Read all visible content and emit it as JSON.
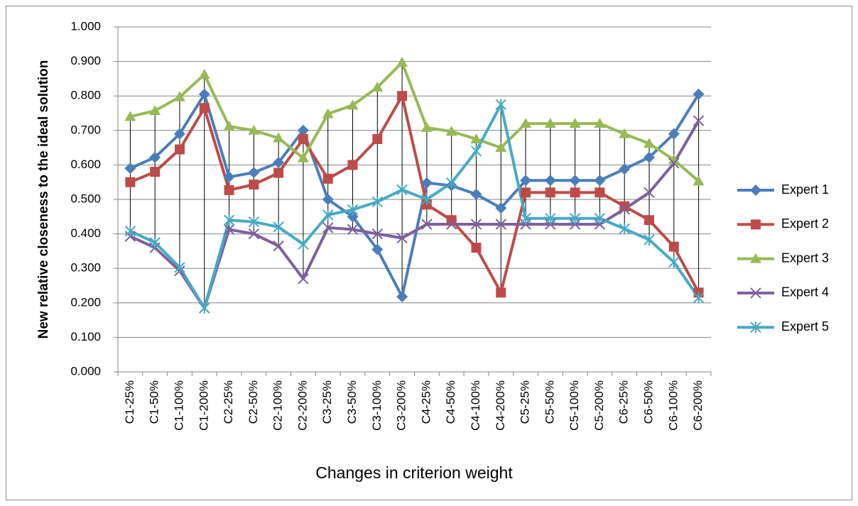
{
  "chart_data": {
    "type": "line",
    "y_label": "New relative closeness to the ideal solution",
    "x_label": "Changes in criterion weight",
    "categories": [
      "C1-25%",
      "C1-50%",
      "C1-100%",
      "C1-200%",
      "C2-25%",
      "C2-50%",
      "C2-100%",
      "C2-200%",
      "C3-25%",
      "C3-50%",
      "C3-100%",
      "C3-200%",
      "C4-25%",
      "C4-50%",
      "C4-100%",
      "C4-200%",
      "C5-25%",
      "C5-50%",
      "C5-100%",
      "C5-200%",
      "C6-25%",
      "C6-50%",
      "C6-100%",
      "C6-200%"
    ],
    "series": [
      {
        "name": "Expert 1",
        "color": "#4a7ebb",
        "marker": "diamond",
        "values": [
          0.59,
          0.622,
          0.69,
          0.805,
          0.565,
          0.578,
          0.607,
          0.7,
          0.5,
          0.45,
          0.355,
          0.218,
          0.548,
          0.54,
          0.515,
          0.475,
          0.555,
          0.555,
          0.555,
          0.555,
          0.588,
          0.622,
          0.69,
          0.805
        ]
      },
      {
        "name": "Expert 2",
        "color": "#be4b48",
        "marker": "square",
        "values": [
          0.55,
          0.58,
          0.645,
          0.765,
          0.527,
          0.543,
          0.577,
          0.675,
          0.56,
          0.6,
          0.675,
          0.8,
          0.485,
          0.44,
          0.36,
          0.23,
          0.52,
          0.52,
          0.52,
          0.52,
          0.48,
          0.44,
          0.363,
          0.23
        ]
      },
      {
        "name": "Expert 3",
        "color": "#98b954",
        "marker": "triangle",
        "values": [
          0.74,
          0.757,
          0.797,
          0.862,
          0.712,
          0.7,
          0.678,
          0.62,
          0.748,
          0.773,
          0.825,
          0.897,
          0.708,
          0.697,
          0.675,
          0.65,
          0.72,
          0.72,
          0.72,
          0.72,
          0.69,
          0.662,
          0.615,
          0.553
        ]
      },
      {
        "name": "Expert 4",
        "color": "#7d60a0",
        "marker": "x",
        "values": [
          0.393,
          0.36,
          0.293,
          0.185,
          0.413,
          0.4,
          0.365,
          0.27,
          0.418,
          0.413,
          0.4,
          0.388,
          0.428,
          0.428,
          0.428,
          0.428,
          0.428,
          0.428,
          0.428,
          0.428,
          0.472,
          0.52,
          0.605,
          0.728
        ]
      },
      {
        "name": "Expert 5",
        "color": "#46aac5",
        "marker": "star",
        "values": [
          0.408,
          0.375,
          0.303,
          0.185,
          0.44,
          0.435,
          0.42,
          0.37,
          0.455,
          0.47,
          0.493,
          0.528,
          0.5,
          0.548,
          0.64,
          0.775,
          0.445,
          0.445,
          0.445,
          0.445,
          0.415,
          0.383,
          0.318,
          0.215
        ]
      }
    ],
    "ylim": [
      0,
      1
    ],
    "yticks": [
      {
        "value": 0,
        "label": "0.000"
      },
      {
        "value": 0.1,
        "label": "0.100"
      },
      {
        "value": 0.2,
        "label": "0.200"
      },
      {
        "value": 0.3,
        "label": "0.300"
      },
      {
        "value": 0.4,
        "label": "0.400"
      },
      {
        "value": 0.5,
        "label": "0.500"
      },
      {
        "value": 0.6,
        "label": "0.600"
      },
      {
        "value": 0.7,
        "label": "0.700"
      },
      {
        "value": 0.8,
        "label": "0.800"
      },
      {
        "value": 0.9,
        "label": "0.900"
      },
      {
        "value": 1,
        "label": "1.000"
      }
    ],
    "grid": true,
    "high_low_lines": true,
    "legend": "right"
  }
}
